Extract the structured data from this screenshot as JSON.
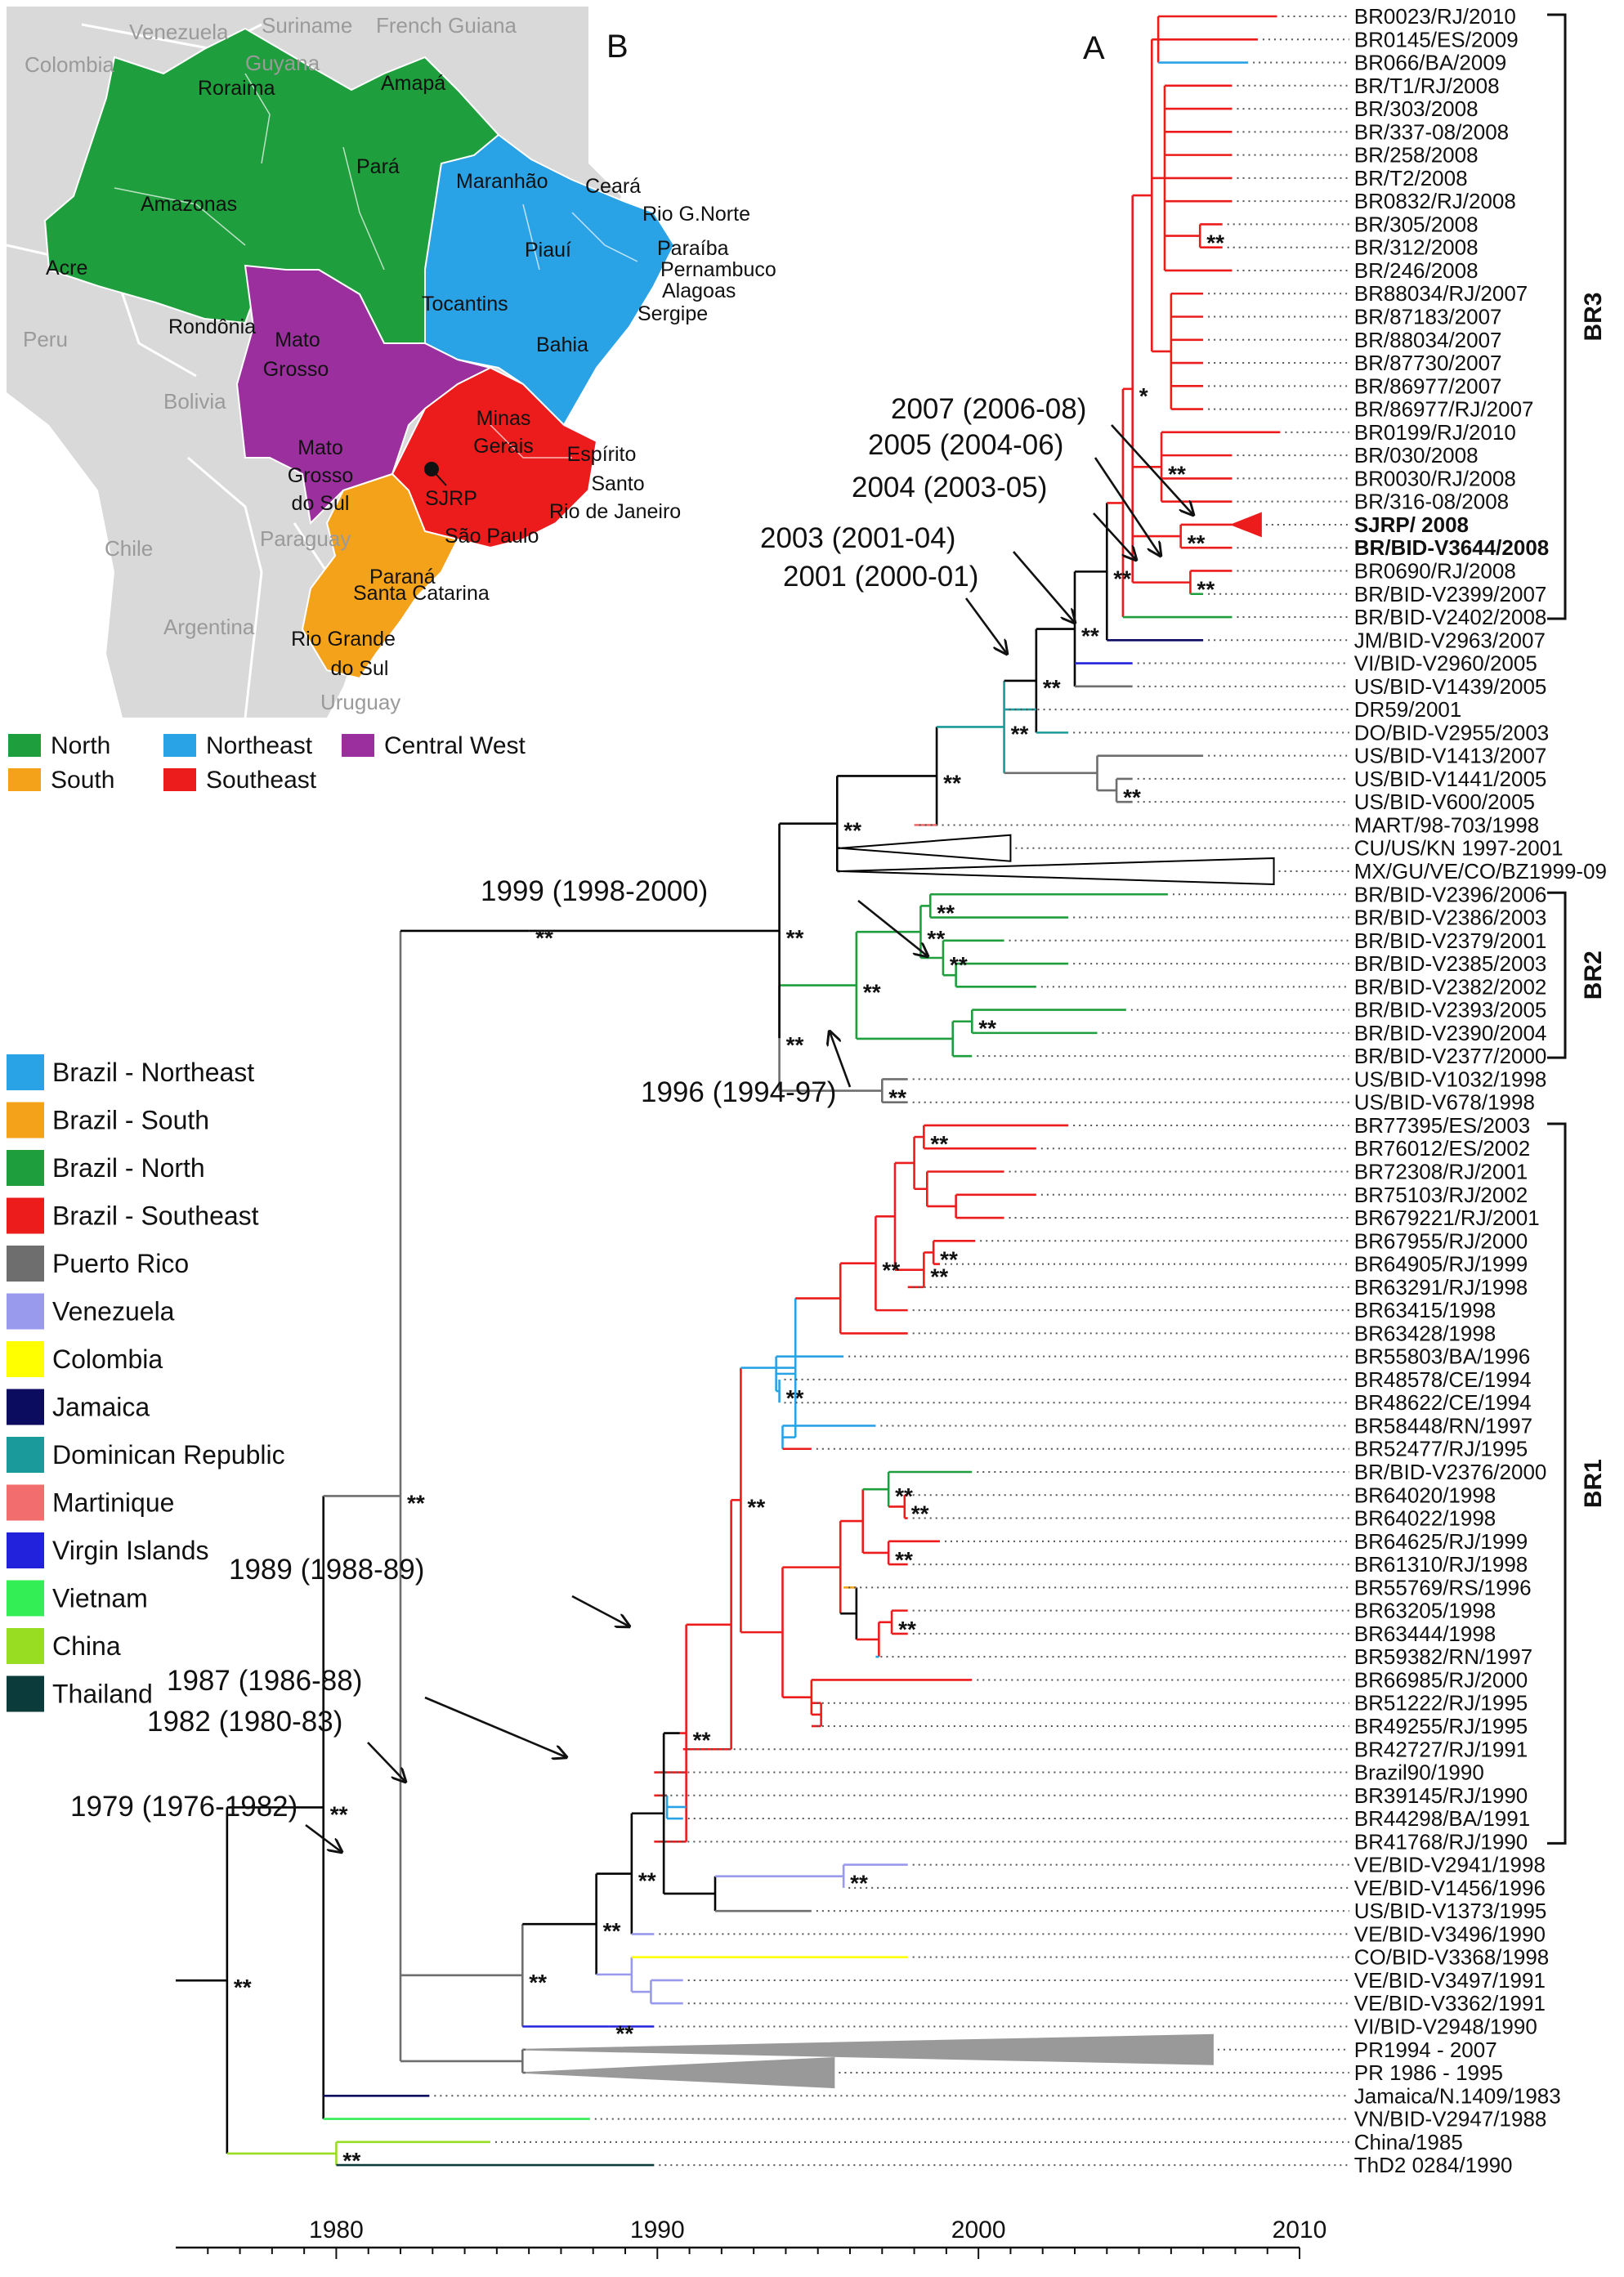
{
  "panels": {
    "map_label": "B",
    "tree_label": "A"
  },
  "map": {
    "countries": [
      "Venezuela",
      "Suriname",
      "French Guiana",
      "Colombia",
      "Guyana",
      "Peru",
      "Bolivia",
      "Chile",
      "Paraguay",
      "Argentina",
      "Uruguay"
    ],
    "states": [
      {
        "name": "Roraima",
        "region": "north"
      },
      {
        "name": "Amapá",
        "region": "north"
      },
      {
        "name": "Amazonas",
        "region": "north"
      },
      {
        "name": "Pará",
        "region": "north"
      },
      {
        "name": "Acre",
        "region": "north"
      },
      {
        "name": "Rondônia",
        "region": "north"
      },
      {
        "name": "Tocantins",
        "region": "north"
      },
      {
        "name": "Maranhão",
        "region": "northeast"
      },
      {
        "name": "Ceará",
        "region": "northeast"
      },
      {
        "name": "Rio G.Norte",
        "region": "northeast"
      },
      {
        "name": "Piauí",
        "region": "northeast"
      },
      {
        "name": "Paraíba",
        "region": "northeast"
      },
      {
        "name": "Pernambuco",
        "region": "northeast"
      },
      {
        "name": "Alagoas",
        "region": "northeast"
      },
      {
        "name": "Sergipe",
        "region": "northeast"
      },
      {
        "name": "Bahia",
        "region": "northeast"
      },
      {
        "name": "Mato Grosso",
        "region": "centralwest"
      },
      {
        "name": "Mato Grosso do Sul",
        "region": "centralwest"
      },
      {
        "name": "Minas Gerais",
        "region": "southeast"
      },
      {
        "name": "Espírito Santo",
        "region": "southeast"
      },
      {
        "name": "Rio de Janeiro",
        "region": "southeast"
      },
      {
        "name": "São Paulo",
        "region": "southeast"
      },
      {
        "name": "Paraná",
        "region": "south"
      },
      {
        "name": "Santa Catarina",
        "region": "south"
      },
      {
        "name": "Rio Grande do Sul",
        "region": "south"
      }
    ],
    "city": "SJRP",
    "legend": [
      {
        "label": "North",
        "color": "#1e9e3c"
      },
      {
        "label": "Northeast",
        "color": "#2aa2e6"
      },
      {
        "label": "Central West",
        "color": "#9b2f9e"
      },
      {
        "label": "South",
        "color": "#f5a21b"
      },
      {
        "label": "Southeast",
        "color": "#ec1c1c"
      }
    ],
    "region_colors": {
      "north": "#1e9e3c",
      "northeast": "#2aa2e6",
      "centralwest": "#9b2f9e",
      "southeast": "#ec1c1c",
      "south": "#f5a21b",
      "land": "#d9d9d9",
      "borders": "#ffffff"
    }
  },
  "country_legend": [
    {
      "label": "Brazil - Northeast",
      "color": "#2aa2e6"
    },
    {
      "label": "Brazil - South",
      "color": "#f5a21b"
    },
    {
      "label": "Brazil - North",
      "color": "#1e9e3c"
    },
    {
      "label": "Brazil - Southeast",
      "color": "#ec1c1c"
    },
    {
      "label": "Puerto Rico",
      "color": "#6e6e6e"
    },
    {
      "label": "Venezuela",
      "color": "#9999ee"
    },
    {
      "label": "Colombia",
      "color": "#ffff00"
    },
    {
      "label": "Jamaica",
      "color": "#0b0b60"
    },
    {
      "label": "Dominican Republic",
      "color": "#1a9a9a"
    },
    {
      "label": "Martinique",
      "color": "#f26d6d"
    },
    {
      "label": "Virgin Islands",
      "color": "#2222dd"
    },
    {
      "label": "Vietnam",
      "color": "#33ee55"
    },
    {
      "label": "China",
      "color": "#99dd22"
    },
    {
      "label": "Thailand",
      "color": "#0c3b3b"
    }
  ],
  "tree": {
    "axis": {
      "min": 1975,
      "max": 2010,
      "labeled_ticks": [
        1980,
        1990,
        2000,
        2010
      ]
    },
    "support_label": "**",
    "support_label_single": "*",
    "taxa": [
      {
        "name": "BR0023/RJ/2010",
        "color": "#ec1c1c"
      },
      {
        "name": "BR0145/ES/2009",
        "color": "#ec1c1c"
      },
      {
        "name": "BR066/BA/2009",
        "color": "#2aa2e6"
      },
      {
        "name": "BR/T1/RJ/2008",
        "color": "#ec1c1c"
      },
      {
        "name": "BR/303/2008",
        "color": "#ec1c1c"
      },
      {
        "name": "BR/337-08/2008",
        "color": "#ec1c1c"
      },
      {
        "name": "BR/258/2008",
        "color": "#ec1c1c"
      },
      {
        "name": "BR/T2/2008",
        "color": "#ec1c1c"
      },
      {
        "name": "BR0832/RJ/2008",
        "color": "#ec1c1c"
      },
      {
        "name": "BR/305/2008",
        "color": "#ec1c1c"
      },
      {
        "name": "BR/312/2008",
        "color": "#ec1c1c"
      },
      {
        "name": "BR/246/2008",
        "color": "#ec1c1c"
      },
      {
        "name": "BR88034/RJ/2007",
        "color": "#ec1c1c"
      },
      {
        "name": "BR/87183/2007",
        "color": "#ec1c1c"
      },
      {
        "name": "BR/88034/2007",
        "color": "#ec1c1c"
      },
      {
        "name": "BR/87730/2007",
        "color": "#ec1c1c"
      },
      {
        "name": "BR/86977/2007",
        "color": "#ec1c1c"
      },
      {
        "name": "BR/86977/RJ/2007",
        "color": "#ec1c1c"
      },
      {
        "name": "BR0199/RJ/2010",
        "color": "#ec1c1c"
      },
      {
        "name": "BR/030/2008",
        "color": "#ec1c1c"
      },
      {
        "name": "BR0030/RJ/2008",
        "color": "#ec1c1c"
      },
      {
        "name": "BR/316-08/2008",
        "color": "#ec1c1c"
      },
      {
        "name": "SJRP/ 2008",
        "color": "#ec1c1c",
        "bold": true,
        "collapsed": true
      },
      {
        "name": "BR/BID-V3644/2008",
        "color": "#ec1c1c",
        "bold": true
      },
      {
        "name": "BR0690/RJ/2008",
        "color": "#ec1c1c"
      },
      {
        "name": "BR/BID-V2399/2007",
        "color": "#1e9e3c"
      },
      {
        "name": "BR/BID-V2402/2008",
        "color": "#1e9e3c"
      },
      {
        "name": "JM/BID-V2963/2007",
        "color": "#0b0b60"
      },
      {
        "name": "VI/BID-V2960/2005",
        "color": "#2222dd"
      },
      {
        "name": "US/BID-V1439/2005",
        "color": "#6e6e6e"
      },
      {
        "name": "DR59/2001",
        "color": "#1a9a9a"
      },
      {
        "name": "DO/BID-V2955/2003",
        "color": "#1a9a9a"
      },
      {
        "name": "US/BID-V1413/2007",
        "color": "#6e6e6e"
      },
      {
        "name": "US/BID-V1441/2005",
        "color": "#6e6e6e"
      },
      {
        "name": "US/BID-V600/2005",
        "color": "#6e6e6e"
      },
      {
        "name": "MART/98-703/1998",
        "color": "#f26d6d"
      },
      {
        "name": "CU/US/KN 1997-2001",
        "color": "#000000",
        "collapsed": true
      },
      {
        "name": "MX/GU/VE/CO/BZ1999-09",
        "color": "#000000",
        "collapsed": true
      },
      {
        "name": "BR/BID-V2396/2006",
        "color": "#1e9e3c"
      },
      {
        "name": "BR/BID-V2386/2003",
        "color": "#1e9e3c"
      },
      {
        "name": "BR/BID-V2379/2001",
        "color": "#1e9e3c"
      },
      {
        "name": "BR/BID-V2385/2003",
        "color": "#1e9e3c"
      },
      {
        "name": "BR/BID-V2382/2002",
        "color": "#1e9e3c"
      },
      {
        "name": "BR/BID-V2393/2005",
        "color": "#1e9e3c"
      },
      {
        "name": "BR/BID-V2390/2004",
        "color": "#1e9e3c"
      },
      {
        "name": "BR/BID-V2377/2000",
        "color": "#1e9e3c"
      },
      {
        "name": "US/BID-V1032/1998",
        "color": "#6e6e6e"
      },
      {
        "name": "US/BID-V678/1998",
        "color": "#6e6e6e"
      },
      {
        "name": "BR77395/ES/2003",
        "color": "#ec1c1c"
      },
      {
        "name": "BR76012/ES/2002",
        "color": "#ec1c1c"
      },
      {
        "name": "BR72308/RJ/2001",
        "color": "#ec1c1c"
      },
      {
        "name": "BR75103/RJ/2002",
        "color": "#ec1c1c"
      },
      {
        "name": "BR679221/RJ/2001",
        "color": "#ec1c1c"
      },
      {
        "name": "BR67955/RJ/2000",
        "color": "#ec1c1c"
      },
      {
        "name": "BR64905/RJ/1999",
        "color": "#ec1c1c"
      },
      {
        "name": "BR63291/RJ/1998",
        "color": "#ec1c1c"
      },
      {
        "name": "BR63415/1998",
        "color": "#ec1c1c"
      },
      {
        "name": "BR63428/1998",
        "color": "#ec1c1c"
      },
      {
        "name": "BR55803/BA/1996",
        "color": "#2aa2e6"
      },
      {
        "name": "BR48578/CE/1994",
        "color": "#2aa2e6"
      },
      {
        "name": "BR48622/CE/1994",
        "color": "#2aa2e6"
      },
      {
        "name": "BR58448/RN/1997",
        "color": "#2aa2e6"
      },
      {
        "name": "BR52477/RJ/1995",
        "color": "#ec1c1c"
      },
      {
        "name": "BR/BID-V2376/2000",
        "color": "#1e9e3c"
      },
      {
        "name": "BR64020/1998",
        "color": "#ec1c1c"
      },
      {
        "name": "BR64022/1998",
        "color": "#ec1c1c"
      },
      {
        "name": "BR64625/RJ/1999",
        "color": "#ec1c1c"
      },
      {
        "name": "BR61310/RJ/1998",
        "color": "#ec1c1c"
      },
      {
        "name": "BR55769/RS/1996",
        "color": "#f5a21b"
      },
      {
        "name": "BR63205/1998",
        "color": "#ec1c1c"
      },
      {
        "name": "BR63444/1998",
        "color": "#ec1c1c"
      },
      {
        "name": "BR59382/RN/1997",
        "color": "#2aa2e6"
      },
      {
        "name": "BR66985/RJ/2000",
        "color": "#ec1c1c"
      },
      {
        "name": "BR51222/RJ/1995",
        "color": "#ec1c1c"
      },
      {
        "name": "BR49255/RJ/1995",
        "color": "#ec1c1c"
      },
      {
        "name": "BR42727/RJ/1991",
        "color": "#ec1c1c"
      },
      {
        "name": "Brazil90/1990",
        "color": "#ec1c1c"
      },
      {
        "name": "BR39145/RJ/1990",
        "color": "#ec1c1c"
      },
      {
        "name": "BR44298/BA/1991",
        "color": "#2aa2e6"
      },
      {
        "name": "BR41768/RJ/1990",
        "color": "#ec1c1c"
      },
      {
        "name": "VE/BID-V2941/1998",
        "color": "#9999ee"
      },
      {
        "name": "VE/BID-V1456/1996",
        "color": "#9999ee"
      },
      {
        "name": "US/BID-V1373/1995",
        "color": "#6e6e6e"
      },
      {
        "name": "VE/BID-V3496/1990",
        "color": "#9999ee"
      },
      {
        "name": "CO/BID-V3368/1998",
        "color": "#ffff00"
      },
      {
        "name": "VE/BID-V3497/1991",
        "color": "#9999ee"
      },
      {
        "name": "VE/BID-V3362/1991",
        "color": "#9999ee"
      },
      {
        "name": "VI/BID-V2948/1990",
        "color": "#2222dd"
      },
      {
        "name": "PR1994 - 2007",
        "color": "#6e6e6e",
        "collapsed": true
      },
      {
        "name": "PR 1986 - 1995",
        "color": "#6e6e6e",
        "collapsed": true
      },
      {
        "name": "Jamaica/N.1409/1983",
        "color": "#0b0b60"
      },
      {
        "name": "VN/BID-V2947/1988",
        "color": "#33ee55"
      },
      {
        "name": "China/1985",
        "color": "#99dd22"
      },
      {
        "name": "ThD2 0284/1990",
        "color": "#0c3b3b"
      }
    ],
    "clades": [
      {
        "label": "BR3",
        "from": "BR0023/RJ/2010",
        "to": "BR/BID-V2402/2008"
      },
      {
        "label": "BR2",
        "from": "BR/BID-V2396/2006",
        "to": "BR/BID-V2377/2000"
      },
      {
        "label": "BR1",
        "from": "BR77395/ES/2003",
        "to": "BR41768/RJ/1990"
      }
    ],
    "node_dates": [
      "2007 (2006-08)",
      "2005 (2004-06)",
      "2004 (2003-05)",
      "2003 (2001-04)",
      "2001 (2000-01)",
      "1999 (1998-2000)",
      "1996 (1994-97)",
      "1989 (1988-89)",
      "1987 (1986-88)",
      "1982 (1980-83)",
      "1979 (1976-1982)"
    ]
  }
}
